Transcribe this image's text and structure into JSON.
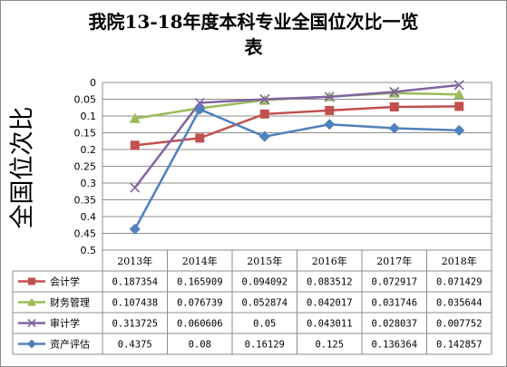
{
  "chart_data": {
    "type": "line",
    "title_line1": "我院13-18年度本科专业全国位次比一览",
    "title_line2": "表",
    "ylabel": "全国位次比",
    "y_axis_reversed": true,
    "ylim": [
      0,
      0.5
    ],
    "y_ticks": [
      "0",
      "0.05",
      "0.1",
      "0.15",
      "0.2",
      "0.25",
      "0.3",
      "0.35",
      "0.4",
      "0.45",
      "0.5"
    ],
    "categories": [
      "2013年",
      "2014年",
      "2015年",
      "2016年",
      "2017年",
      "2018年"
    ],
    "grid": true,
    "legend_placement": "data-table",
    "series": [
      {
        "name": "会计学",
        "color": "#c0504d",
        "marker": "square",
        "values": [
          0.187354,
          0.165909,
          0.094092,
          0.083512,
          0.072917,
          0.071429
        ],
        "labels": [
          "0.187354",
          "0.165909",
          "0.094092",
          "0.083512",
          "0.072917",
          "0.071429"
        ]
      },
      {
        "name": "财务管理",
        "color": "#9bbb59",
        "marker": "triangle",
        "values": [
          0.107438,
          0.076739,
          0.052874,
          0.042017,
          0.031746,
          0.035644
        ],
        "labels": [
          "0.107438",
          "0.076739",
          "0.052874",
          "0.042017",
          "0.031746",
          "0.035644"
        ]
      },
      {
        "name": "审计学",
        "color": "#8064a2",
        "marker": "x",
        "values": [
          0.313725,
          0.060606,
          0.05,
          0.043011,
          0.028037,
          0.007752
        ],
        "labels": [
          "0.313725",
          "0.060606",
          "0.05",
          "0.043011",
          "0.028037",
          "0.007752"
        ]
      },
      {
        "name": "资产评估",
        "color": "#4f81bd",
        "marker": "diamond",
        "values": [
          0.4375,
          0.08,
          0.16129,
          0.125,
          0.136364,
          0.142857
        ],
        "labels": [
          "0.4375",
          "0.08",
          "0.16129",
          "0.125",
          "0.136364",
          "0.142857"
        ]
      }
    ]
  }
}
